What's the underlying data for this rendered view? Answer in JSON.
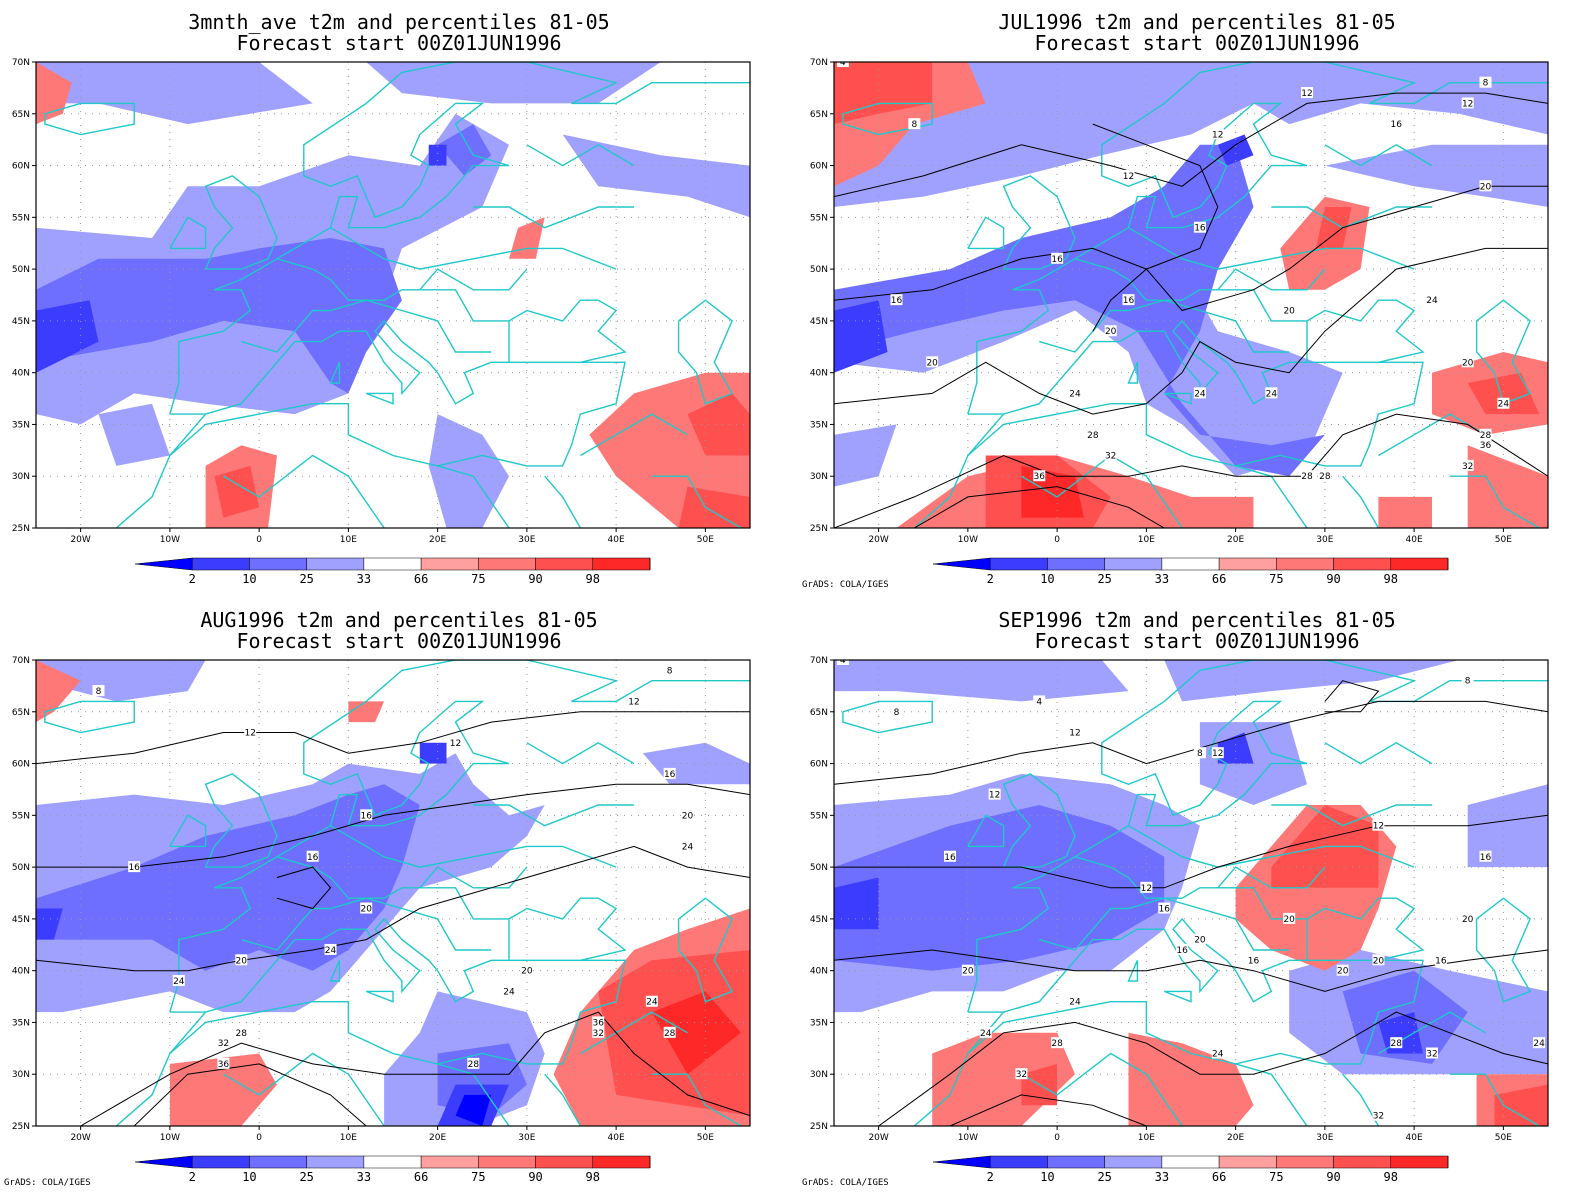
{
  "panels": [
    {
      "title_line1": "3mnth_ave t2m and percentiles 81-05",
      "title_line2": "Forecast start 00Z01JUN1996",
      "credit": "",
      "contours": false
    },
    {
      "title_line1": "JUL1996 t2m and percentiles 81-05",
      "title_line2": "Forecast start 00Z01JUN1996",
      "credit": "GrADS: COLA/IGES",
      "contours": true
    },
    {
      "title_line1": "AUG1996 t2m and percentiles 81-05",
      "title_line2": "Forecast start 00Z01JUN1996",
      "credit": "GrADS: COLA/IGES",
      "contours": true
    },
    {
      "title_line1": "SEP1996 t2m and percentiles 81-05",
      "title_line2": "Forecast start 00Z01JUN1996",
      "credit": "GrADS: COLA/IGES",
      "contours": true
    }
  ],
  "map": {
    "lon_range": [
      -25,
      55
    ],
    "lat_range": [
      25,
      70
    ],
    "lat_ticks": [
      "70N",
      "65N",
      "60N",
      "55N",
      "50N",
      "45N",
      "40N",
      "35N",
      "30N",
      "25N"
    ],
    "lon_ticks": [
      "20W",
      "10W",
      "0",
      "10E",
      "20E",
      "30E",
      "40E",
      "50E"
    ],
    "coast_color": "#20c8c8"
  },
  "colorbar": {
    "labels": [
      "2",
      "10",
      "25",
      "33",
      "66",
      "75",
      "90",
      "98"
    ],
    "colors": [
      "#0000ff",
      "#3c3cff",
      "#6e6eff",
      "#a0a0ff",
      "#ffffff",
      "#ffa0a0",
      "#ff7878",
      "#ff5050",
      "#ff2828",
      "#ff0000"
    ]
  }
}
